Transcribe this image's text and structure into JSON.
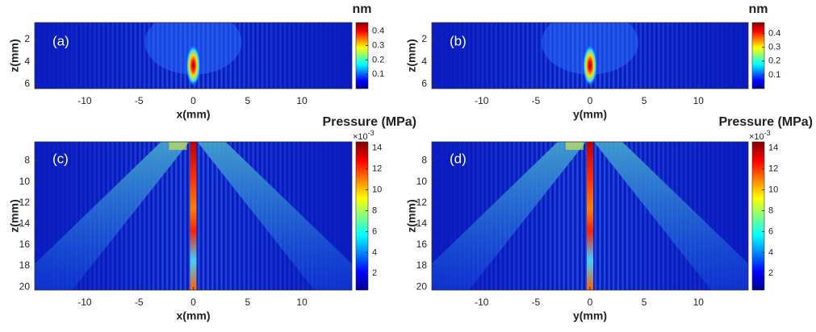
{
  "chart_data": [
    {
      "type": "heatmap",
      "panel_label": "(a)",
      "xlabel": "x(mm)",
      "ylabel": "z(mm)",
      "xlim": [
        -14.6,
        14.6
      ],
      "xticks": [
        -10,
        -5,
        0,
        5,
        10
      ],
      "ylim": [
        0.5,
        6.4
      ],
      "yticks": [
        2,
        4,
        6
      ],
      "colorbar": {
        "title": "nm",
        "lim": [
          0,
          0.46
        ],
        "ticks": [
          0.1,
          0.2,
          0.3,
          0.4
        ]
      }
    },
    {
      "type": "heatmap",
      "panel_label": "(b)",
      "xlabel": "y(mm)",
      "ylabel": "z(mm)",
      "xlim": [
        -14.6,
        14.6
      ],
      "xticks": [
        -10,
        -5,
        0,
        5,
        10
      ],
      "ylim": [
        0.5,
        6.4
      ],
      "yticks": [
        2,
        4,
        6
      ],
      "colorbar": {
        "title": "nm",
        "lim": [
          0,
          0.48
        ],
        "ticks": [
          0.1,
          0.2,
          0.3,
          0.4
        ]
      }
    },
    {
      "type": "heatmap",
      "panel_label": "(c)",
      "xlabel": "x(mm)",
      "ylabel": "z(mm)",
      "xlim": [
        -14.6,
        14.6
      ],
      "xticks": [
        -10,
        -5,
        0,
        5,
        10
      ],
      "ylim": [
        6.2,
        20.3
      ],
      "yticks": [
        8,
        10,
        12,
        14,
        16,
        18,
        20
      ],
      "colorbar": {
        "title": "Pressure (MPa)",
        "exponent_base": "×10",
        "exponent_power": "-3",
        "lim": [
          0.4,
          14.6
        ],
        "ticks": [
          2,
          4,
          6,
          8,
          10,
          12,
          14
        ]
      }
    },
    {
      "type": "heatmap",
      "panel_label": "(d)",
      "xlabel": "y(mm)",
      "ylabel": "z(mm)",
      "xlim": [
        -14.6,
        14.6
      ],
      "xticks": [
        -10,
        -5,
        0,
        5,
        10
      ],
      "ylim": [
        6.2,
        20.3
      ],
      "yticks": [
        8,
        10,
        12,
        14,
        16,
        18,
        20
      ],
      "colorbar": {
        "title": "Pressure (MPa)",
        "exponent_base": "×10",
        "exponent_power": "-3",
        "lim": [
          0.4,
          14.6
        ],
        "ticks": [
          2,
          4,
          6,
          8,
          10,
          12,
          14
        ]
      }
    }
  ]
}
